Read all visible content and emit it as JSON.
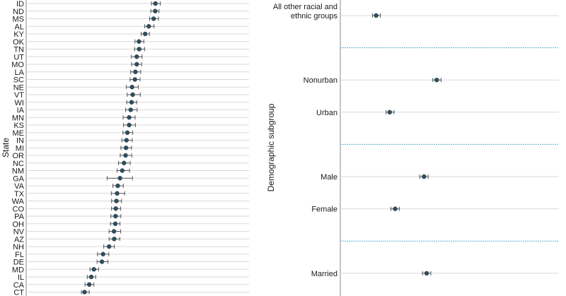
{
  "chart_data": [
    {
      "type": "scatter",
      "style": "dot-and-whisker",
      "ylabel": "State",
      "point_color": "#2e4e5c",
      "whisker_color": "#555555",
      "gridline_color": "#d9d9d9",
      "xlim": [
        0,
        100
      ],
      "categories": [
        "ID",
        "ND",
        "MS",
        "AL",
        "KY",
        "OK",
        "TN",
        "UT",
        "MO",
        "LA",
        "SC",
        "NE",
        "VT",
        "WI",
        "IA",
        "MN",
        "KS",
        "ME",
        "IN",
        "MI",
        "OR",
        "NC",
        "NM",
        "GA",
        "VA",
        "TX",
        "WA",
        "CO",
        "PA",
        "OH",
        "NV",
        "AZ",
        "NH",
        "FL",
        "DE",
        "MD",
        "IL",
        "CA",
        "CT"
      ],
      "values": [
        58.0,
        57.9,
        57.2,
        55.0,
        53.4,
        50.6,
        50.7,
        49.6,
        49.6,
        49.0,
        48.8,
        47.5,
        47.8,
        47.3,
        46.9,
        46.2,
        46.2,
        45.4,
        45.0,
        44.8,
        44.6,
        43.9,
        43.1,
        42.1,
        41.1,
        40.8,
        40.5,
        40.2,
        40.1,
        40.0,
        39.4,
        39.5,
        37.2,
        34.5,
        34.0,
        30.4,
        29.2,
        28.3,
        26.2
      ],
      "lower": [
        56.2,
        55.9,
        55.4,
        53.2,
        51.6,
        48.8,
        48.6,
        47.2,
        47.3,
        46.9,
        46.6,
        44.9,
        45.3,
        45.1,
        44.6,
        43.5,
        43.7,
        43.4,
        42.9,
        42.5,
        42.2,
        41.4,
        40.8,
        36.3,
        38.9,
        38.2,
        38.3,
        38.3,
        38.0,
        37.8,
        37.2,
        37.2,
        34.8,
        32.0,
        31.8,
        28.6,
        27.4,
        26.4,
        24.8
      ],
      "upper": [
        60.2,
        59.6,
        59.4,
        57.4,
        55.3,
        52.8,
        53.2,
        52.0,
        51.8,
        51.4,
        51.1,
        50.3,
        51.2,
        49.6,
        49.8,
        48.9,
        49.0,
        47.8,
        47.6,
        47.3,
        47.4,
        46.7,
        46.4,
        47.7,
        43.6,
        44.2,
        42.8,
        42.4,
        42.5,
        42.1,
        42.4,
        42.0,
        39.6,
        37.1,
        36.7,
        32.5,
        31.2,
        30.4,
        28.3
      ]
    },
    {
      "type": "scatter",
      "style": "dot-and-whisker",
      "ylabel": "Demographic subgroup",
      "point_color": "#2e4e5c",
      "whisker_color": "#555555",
      "gridline_color": "#d9d9d9",
      "separator_color": "#5fb4d6",
      "xlim": [
        0,
        100
      ],
      "groups": [
        {
          "items": [
            {
              "label_lines": [
                "All other racial and",
                "ethnic groups"
              ],
              "value": 16.4,
              "lower": 14.7,
              "upper": 18.3
            }
          ]
        },
        {
          "items": [
            {
              "label_lines": [
                "Nonurban"
              ],
              "value": 44.1,
              "lower": 42.3,
              "upper": 46.1
            },
            {
              "label_lines": [
                "Urban"
              ],
              "value": 22.6,
              "lower": 20.9,
              "upper": 24.6
            }
          ]
        },
        {
          "items": [
            {
              "label_lines": [
                "Male"
              ],
              "value": 38.3,
              "lower": 36.3,
              "upper": 40.2
            },
            {
              "label_lines": [
                "Female"
              ],
              "value": 25.1,
              "lower": 23.1,
              "upper": 27.0
            }
          ]
        },
        {
          "items": [
            {
              "label_lines": [
                "Married"
              ],
              "value": 39.5,
              "lower": 37.6,
              "upper": 41.4
            }
          ]
        }
      ]
    }
  ]
}
